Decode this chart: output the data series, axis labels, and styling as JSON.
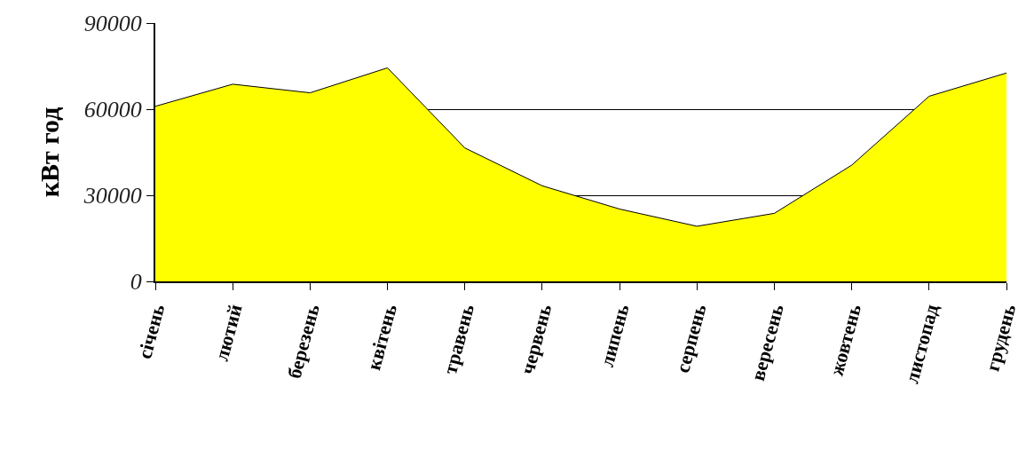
{
  "chart_data": {
    "type": "area",
    "ylabel": "кВт год",
    "categories": [
      "січень",
      "лютий",
      "березень",
      "квітень",
      "травень",
      "червень",
      "липень",
      "серпень",
      "вересень",
      "жовтень",
      "листопад",
      "грудень"
    ],
    "series": [
      {
        "color": "#ffff00",
        "values": [
          61000,
          68700,
          65700,
          74400,
          46500,
          33300,
          25200,
          19200,
          23700,
          40500,
          64500,
          72600
        ]
      }
    ],
    "ylim": [
      0,
      90000
    ],
    "yticks": [
      0,
      30000,
      60000,
      90000
    ],
    "grid": "y"
  }
}
